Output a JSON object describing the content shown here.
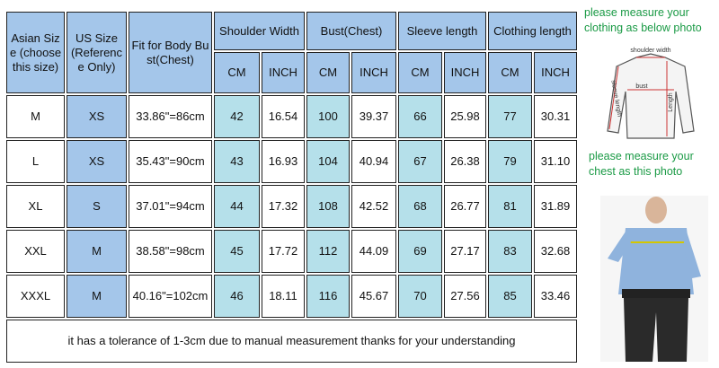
{
  "header": {
    "asian_size": "Asian Size (choose this size)",
    "us_size": "US Size (Reference Only)",
    "fit": "Fit for Body Bust(Chest)",
    "groups": [
      "Shoulder Width",
      "Bust(Chest)",
      "Sleeve length",
      "Clothing length"
    ],
    "units": [
      "CM",
      "INCH",
      "CM",
      "INCH",
      "CM",
      "INCH",
      "CM",
      "INCH"
    ]
  },
  "rows": [
    [
      "M",
      "XS",
      "33.86\"=86cm",
      "42",
      "16.54",
      "100",
      "39.37",
      "66",
      "25.98",
      "77",
      "30.31"
    ],
    [
      "L",
      "XS",
      "35.43\"=90cm",
      "43",
      "16.93",
      "104",
      "40.94",
      "67",
      "26.38",
      "79",
      "31.10"
    ],
    [
      "XL",
      "S",
      "37.01\"=94cm",
      "44",
      "17.32",
      "108",
      "42.52",
      "68",
      "26.77",
      "81",
      "31.89"
    ],
    [
      "XXL",
      "M",
      "38.58\"=98cm",
      "45",
      "17.72",
      "112",
      "44.09",
      "69",
      "27.17",
      "83",
      "32.68"
    ],
    [
      "XXXL",
      "M",
      "40.16\"=102cm",
      "46",
      "18.11",
      "116",
      "45.67",
      "70",
      "27.56",
      "85",
      "33.46"
    ]
  ],
  "footer": "it has a tolerance of 1-3cm due to manual measurement thanks for your understanding",
  "side": {
    "note1": "please measure your clothing as below photo",
    "shoulder": "shoulder width",
    "bust": "bust",
    "sleeve": "sleeve length",
    "length": "Length",
    "note2": "please measure your chest as this photo"
  }
}
